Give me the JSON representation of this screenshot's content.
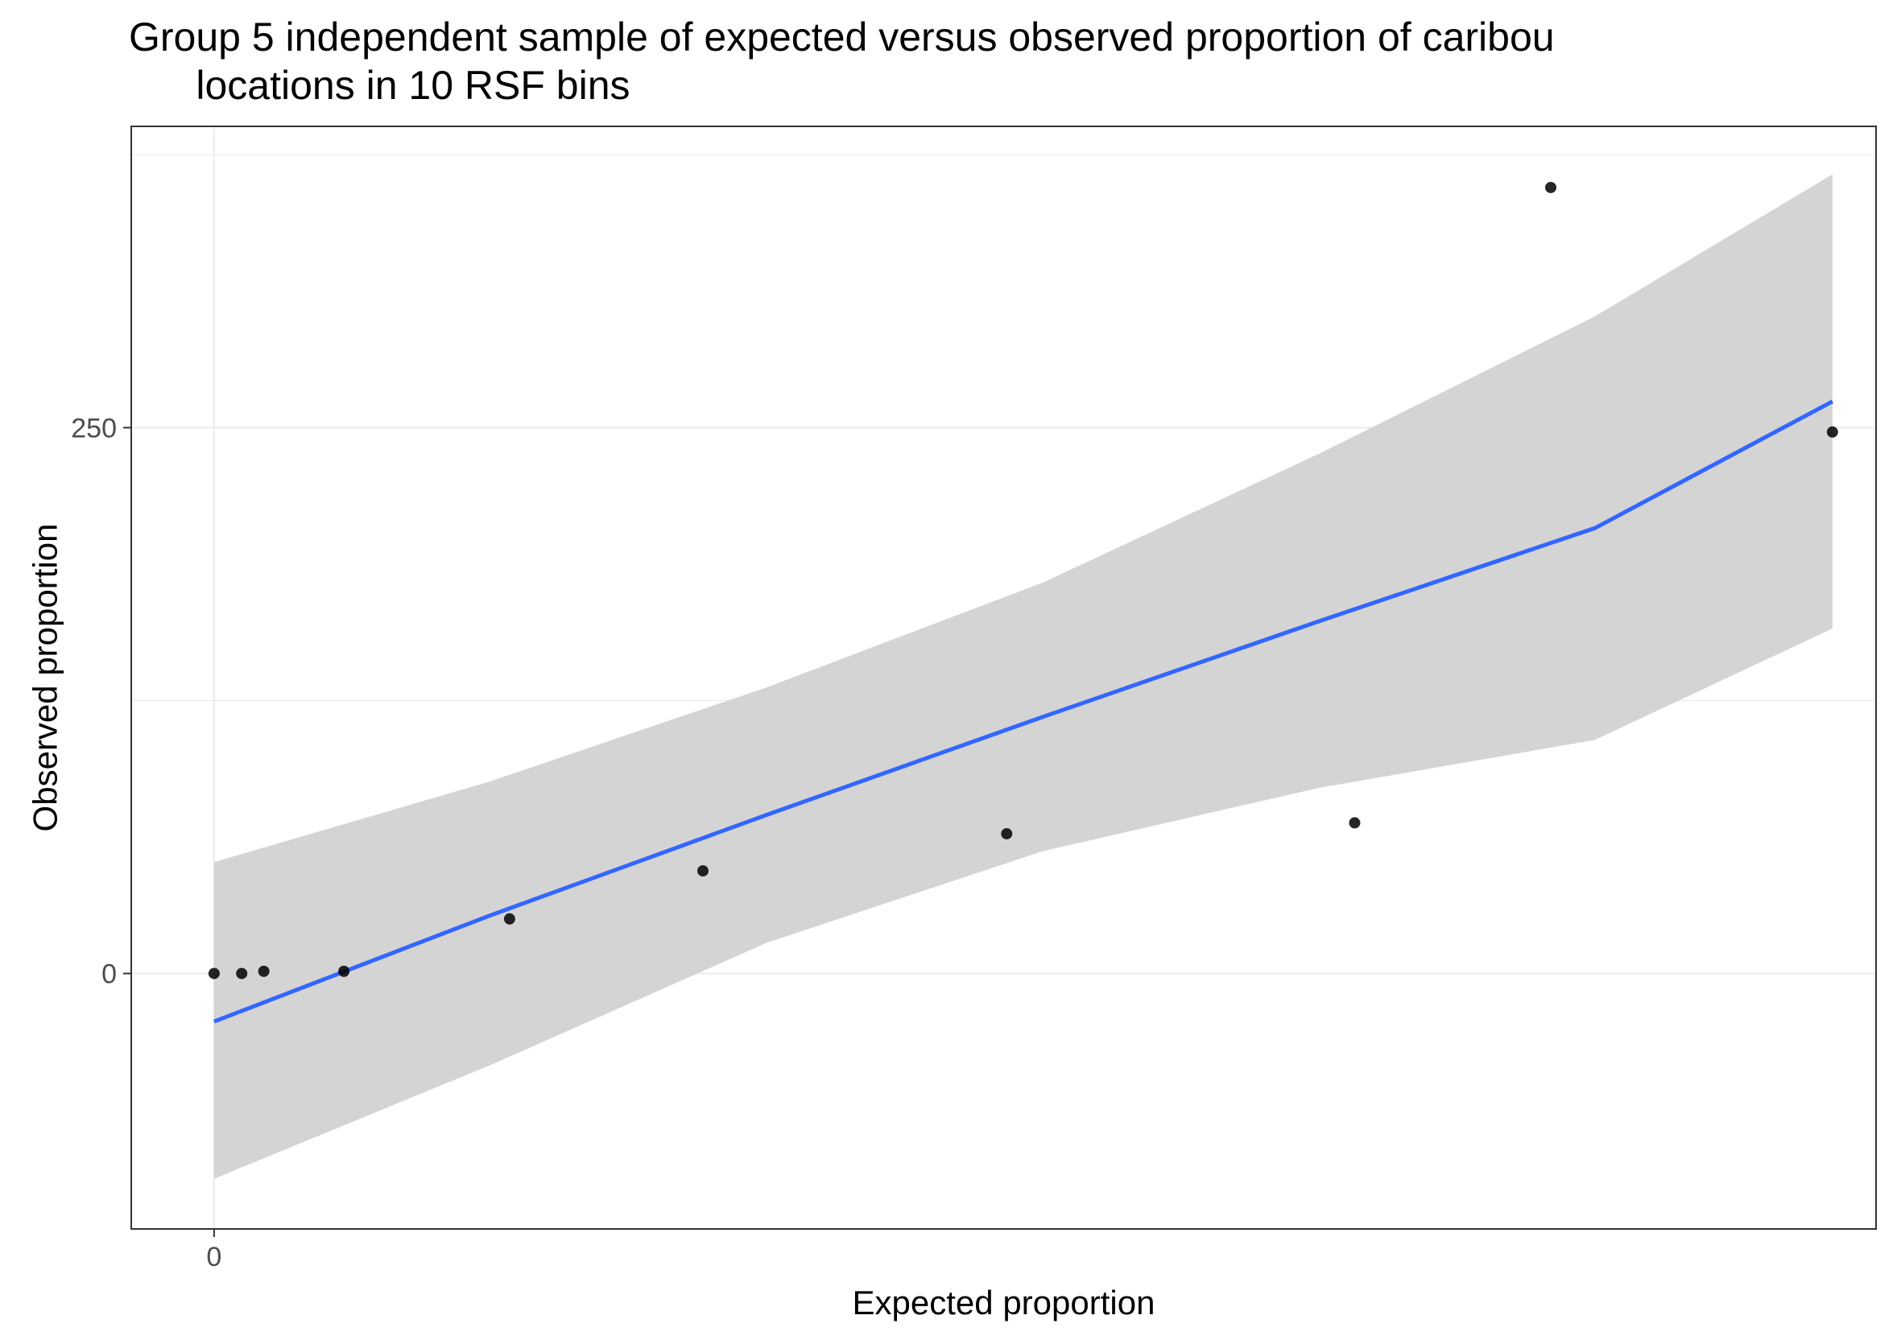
{
  "chart_data": {
    "type": "scatter",
    "title": "Group 5 independent sample of expected versus observed proportion of caribou\n      locations in 10 RSF bins",
    "xlabel": "Expected proportion",
    "ylabel": "Observed proportion",
    "x_ticks": [
      {
        "value": 0,
        "label": "0"
      }
    ],
    "y_ticks": [
      {
        "value": 0,
        "label": "0"
      },
      {
        "value": 250,
        "label": "250"
      }
    ],
    "xlim": [
      -3.0,
      58.6
    ],
    "ylim": [
      -117,
      388
    ],
    "grid": true,
    "points": [
      {
        "x": 0.0,
        "y": 0.0
      },
      {
        "x": 1.0,
        "y": 0.0
      },
      {
        "x": 1.8,
        "y": 1.0
      },
      {
        "x": 4.7,
        "y": 1.0
      },
      {
        "x": 10.7,
        "y": 25.0
      },
      {
        "x": 17.7,
        "y": 47.0
      },
      {
        "x": 28.7,
        "y": 64.0
      },
      {
        "x": 41.3,
        "y": 69.0
      },
      {
        "x": 48.4,
        "y": 360.0
      },
      {
        "x": 58.6,
        "y": 248.0
      }
    ],
    "fit_line": {
      "method": "linear regression",
      "x": [
        0.0,
        10.0,
        20.0,
        30.0,
        40.0,
        50.0,
        58.6
      ],
      "y": [
        -22.0,
        26.6,
        72.6,
        117.5,
        161.3,
        204.0,
        262.0
      ]
    },
    "confidence_band": {
      "x": [
        0.0,
        10.0,
        20.0,
        30.0,
        40.0,
        50.0,
        58.6
      ],
      "lower": [
        -94.0,
        -42.0,
        14.0,
        56.0,
        85.0,
        107.0,
        158.0
      ],
      "upper": [
        51.0,
        88.0,
        131.0,
        179.0,
        238.0,
        301.0,
        366.0
      ]
    },
    "colors": {
      "points": "#000000",
      "fit_line": "#3366ff",
      "band": "#d4d4d4",
      "grid": "#ebebeb",
      "panel_border": "#333333"
    }
  }
}
